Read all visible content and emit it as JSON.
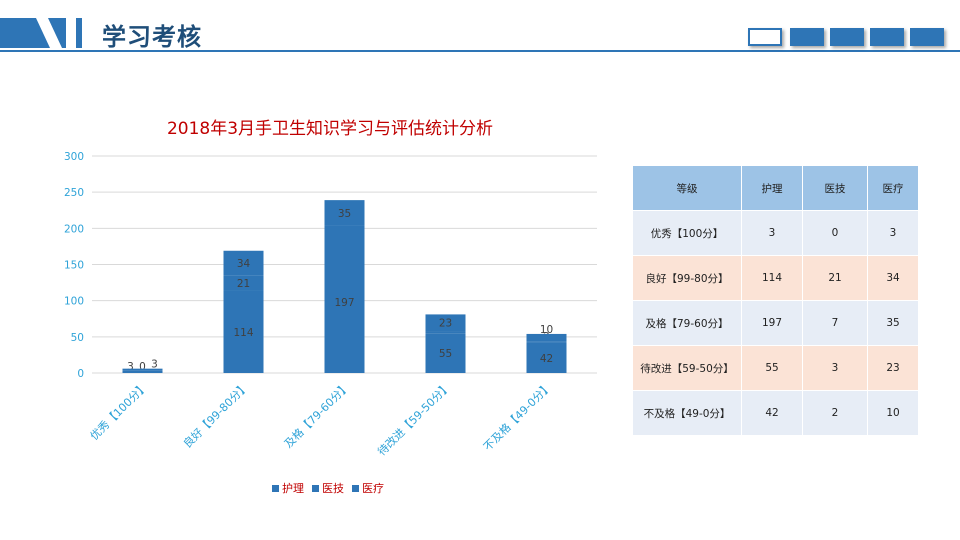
{
  "header": {
    "title": "学习考核"
  },
  "colors": {
    "accent": "#2e75b6",
    "title_red": "#c00000",
    "axis_text": "#2fa3d8",
    "table_header": "#9dc3e6",
    "table_row_blue": "#e7edf6",
    "table_row_peach": "#fbe3d6"
  },
  "chart_data": {
    "type": "bar",
    "stacked": true,
    "title": "2018年3月手卫生知识学习与评估统计分析",
    "categories": [
      "优秀【100分】",
      "良好【99-80分】",
      "及格【79-60分】",
      "待改进【59-50分】",
      "不及格【49-0分】"
    ],
    "series": [
      {
        "name": "护理",
        "values": [
          3,
          114,
          197,
          55,
          42
        ]
      },
      {
        "name": "医技",
        "values": [
          0,
          21,
          7,
          3,
          2
        ]
      },
      {
        "name": "医疗",
        "values": [
          3,
          34,
          35,
          23,
          10
        ]
      }
    ],
    "y_ticks": [
      "0",
      "50",
      "100",
      "150",
      "200",
      "250",
      "300"
    ],
    "ylim": [
      0,
      300
    ],
    "grid": true,
    "legend_position": "bottom"
  },
  "table": {
    "headers": [
      "等级",
      "护理",
      "医技",
      "医疗"
    ],
    "rows": [
      [
        "优秀【100分】",
        "3",
        "0",
        "3"
      ],
      [
        "良好【99-80分】",
        "114",
        "21",
        "34"
      ],
      [
        "及格【79-60分】",
        "197",
        "7",
        "35"
      ],
      [
        "待改进【59-50分】",
        "55",
        "3",
        "23"
      ],
      [
        "不及格【49-0分】",
        "42",
        "2",
        "10"
      ]
    ]
  }
}
